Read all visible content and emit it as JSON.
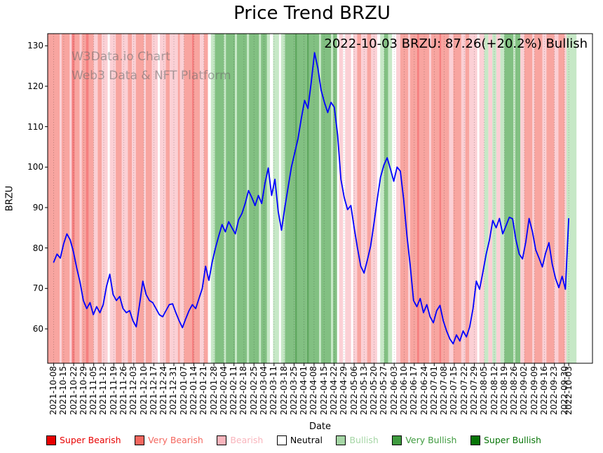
{
  "page": {
    "title": "Price Trend BRZU"
  },
  "watermark": {
    "line1": "W3Data.io Chart",
    "line2": "Web3 Data & NFT Platform"
  },
  "annotation": {
    "text": "2022-10-03 BRZU: 87.26(+20.2%) Bullish"
  },
  "chart_data": {
    "type": "line",
    "title": "Price Trend BRZU",
    "xlabel": "Date",
    "ylabel": "BRZU",
    "line_color": "#0000ff",
    "ylim": [
      51.5,
      133
    ],
    "yticks": [
      60,
      70,
      80,
      90,
      100,
      110,
      120,
      130
    ],
    "grid": "vertical-dotted-weekly",
    "legend_position": "bottom",
    "x_tick_labels": [
      "2021-10-08",
      "2021-10-15",
      "2021-10-22",
      "2021-10-29",
      "2021-11-05",
      "2021-11-12",
      "2021-11-19",
      "2021-11-26",
      "2021-12-03",
      "2021-12-10",
      "2021-12-17",
      "2021-12-24",
      "2021-12-31",
      "2022-01-07",
      "2022-01-14",
      "2022-01-21",
      "2022-01-28",
      "2022-02-04",
      "2022-02-11",
      "2022-02-18",
      "2022-02-25",
      "2022-03-04",
      "2022-03-11",
      "2022-03-18",
      "2022-03-25",
      "2022-04-01",
      "2022-04-08",
      "2022-04-15",
      "2022-04-22",
      "2022-04-29",
      "2022-05-06",
      "2022-05-13",
      "2022-05-20",
      "2022-05-27",
      "2022-06-03",
      "2022-06-10",
      "2022-06-17",
      "2022-06-24",
      "2022-07-01",
      "2022-07-08",
      "2022-07-15",
      "2022-07-22",
      "2022-07-29",
      "2022-08-05",
      "2022-08-12",
      "2022-08-19",
      "2022-08-26",
      "2022-09-02",
      "2022-09-09",
      "2022-09-16",
      "2022-09-23",
      "2022-09-30",
      "2022-10-03"
    ],
    "last_week_position": 51.43,
    "values": [
      76.5,
      78.5,
      77.5,
      81,
      83.5,
      82,
      79,
      75,
      71.5,
      67,
      65,
      66.5,
      63.5,
      65.5,
      64,
      66,
      70.5,
      73.5,
      68.5,
      67,
      68,
      65,
      64,
      64.5,
      62,
      60.5,
      66,
      71.8,
      68.5,
      67,
      66.5,
      65,
      63.5,
      63,
      64.5,
      66,
      66.2,
      64,
      62,
      60.3,
      62.5,
      64.5,
      66,
      65,
      67.5,
      70,
      75.5,
      72,
      76.5,
      80,
      83,
      85.8,
      84,
      86.5,
      85,
      83.5,
      87,
      88.5,
      91,
      94.2,
      92.5,
      90.5,
      93,
      91,
      96,
      99.8,
      93,
      97,
      89,
      84.4,
      90,
      95,
      100,
      103.5,
      107,
      112,
      116.5,
      114.5,
      121,
      128.3,
      124.5,
      119,
      116,
      113.5,
      116,
      114.8,
      108,
      97,
      92.5,
      89.5,
      90.5,
      85,
      80,
      75.5,
      73.8,
      77,
      80.5,
      86,
      92,
      97.5,
      100.5,
      102.3,
      99.5,
      96.5,
      100,
      99,
      92,
      83,
      75.6,
      67,
      65.5,
      67.5,
      64,
      66,
      63,
      61.5,
      64.5,
      65.8,
      62,
      59.5,
      57.5,
      56.3,
      58.5,
      57,
      59.5,
      58,
      60.5,
      65,
      71.8,
      69.8,
      74,
      78.5,
      82,
      86.8,
      85,
      87.3,
      83.5,
      85.5,
      87.6,
      87.2,
      82,
      78.5,
      77.3,
      81.5,
      87.3,
      84,
      79.5,
      77.5,
      75.3,
      78.8,
      81.3,
      76,
      72.5,
      70.2,
      73,
      69.8,
      87.26
    ],
    "final_point": {
      "date": "2022-10-03",
      "value": 87.26,
      "change_pct": "+20.2%",
      "sentiment": "Bullish"
    },
    "categories": [
      {
        "id": "super-bearish",
        "label": "Super Bearish",
        "band": "#f57f7f",
        "swatch": "#e80000",
        "text": "#e80000"
      },
      {
        "id": "very-bearish",
        "label": "Very Bearish",
        "band": "#f8a5a0",
        "swatch": "#f4675f",
        "text": "#f4675f"
      },
      {
        "id": "bearish",
        "label": "Bearish",
        "band": "#fbd0d5",
        "swatch": "#f9b4bc",
        "text": "#f9b4bc"
      },
      {
        "id": "neutral",
        "label": "Neutral",
        "band": "#ffffff",
        "swatch": "#ffffff",
        "text": "#000000"
      },
      {
        "id": "bullish",
        "label": "Bullish",
        "band": "#c6e8c6",
        "swatch": "#a5d6a5",
        "text": "#a5d6a5"
      },
      {
        "id": "very-bullish",
        "label": "Very Bullish",
        "band": "#82c082",
        "swatch": "#3f9b3f",
        "text": "#3f9b3f"
      },
      {
        "id": "super-bullish",
        "label": "Super Bullish",
        "band": "#5ea75e",
        "swatch": "#077507",
        "text": "#077507"
      }
    ],
    "bands": [
      [
        -0.6,
        0.6,
        1
      ],
      [
        0.6,
        0.8,
        2
      ],
      [
        0.8,
        1.6,
        1
      ],
      [
        1.6,
        1.8,
        2
      ],
      [
        1.8,
        2.1,
        0
      ],
      [
        2.1,
        2.6,
        1
      ],
      [
        2.6,
        2.8,
        2
      ],
      [
        2.8,
        3.2,
        1
      ],
      [
        3.2,
        3.5,
        0
      ],
      [
        3.5,
        4.0,
        1
      ],
      [
        4.0,
        4.4,
        2
      ],
      [
        4.4,
        4.8,
        1
      ],
      [
        4.8,
        5.4,
        2
      ],
      [
        5.4,
        5.6,
        3
      ],
      [
        5.6,
        6.2,
        2
      ],
      [
        6.2,
        6.8,
        1
      ],
      [
        6.8,
        7.4,
        2
      ],
      [
        7.4,
        7.8,
        1
      ],
      [
        7.8,
        8.2,
        2
      ],
      [
        8.2,
        9.0,
        1
      ],
      [
        9.0,
        9.2,
        2
      ],
      [
        9.2,
        9.8,
        1
      ],
      [
        9.8,
        10.4,
        2
      ],
      [
        10.4,
        10.6,
        3
      ],
      [
        10.6,
        11.2,
        2
      ],
      [
        11.2,
        11.6,
        1
      ],
      [
        11.6,
        12.4,
        2
      ],
      [
        12.4,
        12.6,
        1
      ],
      [
        12.6,
        13.0,
        2
      ],
      [
        13.0,
        13.8,
        1
      ],
      [
        13.8,
        14.0,
        0
      ],
      [
        14.0,
        14.6,
        1
      ],
      [
        14.6,
        15.0,
        2
      ],
      [
        15.0,
        15.4,
        1
      ],
      [
        15.4,
        15.7,
        3
      ],
      [
        15.7,
        16.1,
        4
      ],
      [
        16.1,
        17.0,
        5
      ],
      [
        17.0,
        17.2,
        4
      ],
      [
        17.2,
        18.1,
        5
      ],
      [
        18.1,
        18.3,
        4
      ],
      [
        18.3,
        19.3,
        5
      ],
      [
        19.3,
        19.5,
        4
      ],
      [
        19.5,
        20.5,
        5
      ],
      [
        20.5,
        20.7,
        4
      ],
      [
        20.7,
        21.3,
        5
      ],
      [
        21.3,
        21.6,
        4
      ],
      [
        21.6,
        21.9,
        3
      ],
      [
        21.9,
        22.5,
        4
      ],
      [
        22.5,
        22.7,
        3
      ],
      [
        22.7,
        23.1,
        4
      ],
      [
        23.1,
        24.1,
        5
      ],
      [
        24.1,
        24.3,
        6
      ],
      [
        24.3,
        25.3,
        5
      ],
      [
        25.3,
        25.5,
        6
      ],
      [
        25.5,
        26.5,
        5
      ],
      [
        26.5,
        26.7,
        4
      ],
      [
        26.7,
        27.7,
        5
      ],
      [
        27.7,
        27.9,
        4
      ],
      [
        27.9,
        28.3,
        5
      ],
      [
        28.3,
        28.5,
        3
      ],
      [
        28.5,
        28.9,
        2
      ],
      [
        28.9,
        29.1,
        3
      ],
      [
        29.1,
        29.7,
        2
      ],
      [
        29.7,
        29.9,
        3
      ],
      [
        29.9,
        30.3,
        2
      ],
      [
        30.3,
        30.7,
        1
      ],
      [
        30.7,
        31.3,
        2
      ],
      [
        31.3,
        31.7,
        1
      ],
      [
        31.7,
        32.3,
        2
      ],
      [
        32.3,
        32.6,
        3
      ],
      [
        32.6,
        33.0,
        4
      ],
      [
        33.0,
        33.4,
        5
      ],
      [
        33.4,
        33.8,
        4
      ],
      [
        33.8,
        34.2,
        3
      ],
      [
        34.2,
        34.6,
        2
      ],
      [
        34.6,
        35.4,
        1
      ],
      [
        35.4,
        35.6,
        2
      ],
      [
        35.6,
        36.3,
        1
      ],
      [
        36.3,
        36.5,
        0
      ],
      [
        36.5,
        37.5,
        1
      ],
      [
        37.5,
        37.7,
        2
      ],
      [
        37.7,
        38.5,
        1
      ],
      [
        38.5,
        38.7,
        0
      ],
      [
        38.7,
        39.5,
        1
      ],
      [
        39.5,
        39.9,
        2
      ],
      [
        39.9,
        40.7,
        1
      ],
      [
        40.7,
        41.1,
        2
      ],
      [
        41.1,
        41.5,
        1
      ],
      [
        41.5,
        42.3,
        2
      ],
      [
        42.3,
        42.5,
        3
      ],
      [
        42.5,
        43.0,
        2
      ],
      [
        43.0,
        43.4,
        4
      ],
      [
        43.4,
        43.8,
        2
      ],
      [
        43.8,
        44.2,
        4
      ],
      [
        44.2,
        44.6,
        2
      ],
      [
        44.6,
        45.0,
        4
      ],
      [
        45.0,
        45.9,
        5
      ],
      [
        45.9,
        46.1,
        4
      ],
      [
        46.1,
        46.6,
        5
      ],
      [
        46.6,
        47.0,
        2
      ],
      [
        47.0,
        47.8,
        1
      ],
      [
        47.8,
        48.0,
        2
      ],
      [
        48.0,
        48.8,
        1
      ],
      [
        48.8,
        49.2,
        2
      ],
      [
        49.2,
        50.0,
        1
      ],
      [
        50.0,
        50.4,
        2
      ],
      [
        50.4,
        51.0,
        1
      ],
      [
        51.0,
        51.2,
        2
      ],
      [
        51.2,
        52.2,
        4
      ]
    ]
  }
}
